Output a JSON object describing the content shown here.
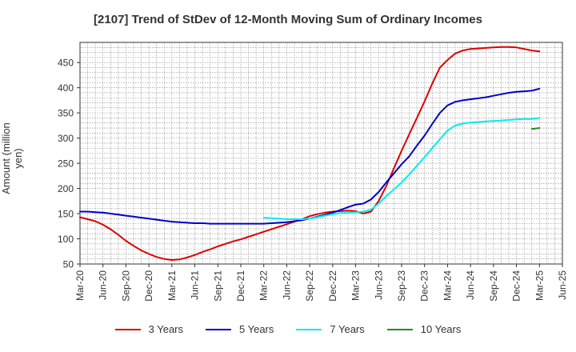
{
  "chart_data": {
    "type": "line",
    "title": "[2107]  Trend of StDev of 12-Month Moving Sum of Ordinary Incomes",
    "ylabel": "Amount (million yen)",
    "xlabel": "",
    "ylim": [
      50,
      490
    ],
    "yticks": [
      50,
      100,
      150,
      200,
      250,
      300,
      350,
      400,
      450
    ],
    "xticks": [
      "Mar-20",
      "Jun-20",
      "Sep-20",
      "Dec-20",
      "Mar-21",
      "Jun-21",
      "Sep-21",
      "Dec-21",
      "Mar-22",
      "Jun-22",
      "Sep-22",
      "Dec-22",
      "Mar-23",
      "Jun-23",
      "Sep-23",
      "Dec-23",
      "Mar-24",
      "Jun-24",
      "Sep-24",
      "Dec-24",
      "Mar-25",
      "Jun-25"
    ],
    "grid": true,
    "legend_position": "bottom",
    "series": [
      {
        "name": "3 Years",
        "color": "#dd0000",
        "x": [
          "Mar-20",
          "Apr-20",
          "May-20",
          "Jun-20",
          "Jul-20",
          "Aug-20",
          "Sep-20",
          "Oct-20",
          "Nov-20",
          "Dec-20",
          "Jan-21",
          "Feb-21",
          "Mar-21",
          "Apr-21",
          "May-21",
          "Jun-21",
          "Jul-21",
          "Aug-21",
          "Sep-21",
          "Oct-21",
          "Nov-21",
          "Dec-21",
          "Jan-22",
          "Feb-22",
          "Mar-22",
          "Apr-22",
          "May-22",
          "Jun-22",
          "Jul-22",
          "Aug-22",
          "Sep-22",
          "Oct-22",
          "Nov-22",
          "Dec-22",
          "Jan-23",
          "Feb-23",
          "Mar-23",
          "Apr-23",
          "May-23",
          "Jun-23",
          "Jul-23",
          "Aug-23",
          "Sep-23",
          "Oct-23",
          "Nov-23",
          "Dec-23",
          "Jan-24",
          "Feb-24",
          "Mar-24",
          "Apr-24",
          "May-24",
          "Jun-24",
          "Jul-24",
          "Aug-24",
          "Sep-24",
          "Oct-24",
          "Nov-24",
          "Dec-24",
          "Jan-25",
          "Feb-25",
          "Mar-25"
        ],
        "values": [
          143,
          139,
          135,
          128,
          119,
          108,
          96,
          86,
          77,
          70,
          64,
          60,
          58,
          59,
          63,
          68,
          74,
          79,
          85,
          90,
          95,
          99,
          104,
          109,
          114,
          119,
          124,
          129,
          134,
          139,
          145,
          149,
          152,
          154,
          155,
          156,
          155,
          150,
          154,
          175,
          205,
          240,
          275,
          308,
          340,
          373,
          408,
          440,
          455,
          468,
          474,
          477,
          478,
          479,
          480,
          481,
          481,
          480,
          477,
          474,
          472
        ]
      },
      {
        "name": "5 Years",
        "color": "#0000cc",
        "x": [
          "Mar-20",
          "Apr-20",
          "May-20",
          "Jun-20",
          "Jul-20",
          "Aug-20",
          "Sep-20",
          "Oct-20",
          "Nov-20",
          "Dec-20",
          "Jan-21",
          "Feb-21",
          "Mar-21",
          "Apr-21",
          "May-21",
          "Jun-21",
          "Jul-21",
          "Aug-21",
          "Sep-21",
          "Oct-21",
          "Nov-21",
          "Dec-21",
          "Jan-22",
          "Feb-22",
          "Mar-22",
          "Apr-22",
          "May-22",
          "Jun-22",
          "Jul-22",
          "Aug-22",
          "Sep-22",
          "Oct-22",
          "Nov-22",
          "Dec-22",
          "Jan-23",
          "Feb-23",
          "Mar-23",
          "Apr-23",
          "May-23",
          "Jun-23",
          "Jul-23",
          "Aug-23",
          "Sep-23",
          "Oct-23",
          "Nov-23",
          "Dec-23",
          "Jan-24",
          "Feb-24",
          "Mar-24",
          "Apr-24",
          "May-24",
          "Jun-24",
          "Jul-24",
          "Aug-24",
          "Sep-24",
          "Oct-24",
          "Nov-24",
          "Dec-24",
          "Jan-25",
          "Feb-25",
          "Mar-25"
        ],
        "values": [
          154,
          154,
          153,
          152,
          150,
          148,
          146,
          144,
          142,
          140,
          138,
          136,
          134,
          133,
          132,
          131,
          131,
          130,
          130,
          130,
          130,
          130,
          130,
          130,
          130,
          131,
          132,
          133,
          135,
          137,
          140,
          144,
          148,
          152,
          157,
          163,
          168,
          170,
          178,
          193,
          212,
          230,
          248,
          264,
          285,
          305,
          328,
          350,
          365,
          372,
          375,
          377,
          379,
          381,
          384,
          387,
          390,
          392,
          393,
          394,
          398
        ]
      },
      {
        "name": "7 Years",
        "color": "#00eeee",
        "x": [
          "Mar-22",
          "Apr-22",
          "May-22",
          "Jun-22",
          "Jul-22",
          "Aug-22",
          "Sep-22",
          "Oct-22",
          "Nov-22",
          "Dec-22",
          "Jan-23",
          "Feb-23",
          "Mar-23",
          "Apr-23",
          "May-23",
          "Jun-23",
          "Jul-23",
          "Aug-23",
          "Sep-23",
          "Oct-23",
          "Nov-23",
          "Dec-23",
          "Jan-24",
          "Feb-24",
          "Mar-24",
          "Apr-24",
          "May-24",
          "Jun-24",
          "Jul-24",
          "Aug-24",
          "Sep-24",
          "Oct-24",
          "Nov-24",
          "Dec-24",
          "Jan-25",
          "Feb-25",
          "Mar-25"
        ],
        "values": [
          142,
          141,
          140,
          139,
          139,
          139,
          140,
          143,
          146,
          149,
          151,
          152,
          153,
          154,
          158,
          170,
          185,
          198,
          212,
          228,
          245,
          262,
          280,
          298,
          315,
          325,
          329,
          331,
          332,
          333,
          334,
          335,
          336,
          337,
          338,
          338,
          340
        ]
      },
      {
        "name": "10 Years",
        "color": "#228b22",
        "x": [
          "Feb-25",
          "Mar-25"
        ],
        "values": [
          318,
          320
        ]
      }
    ]
  }
}
